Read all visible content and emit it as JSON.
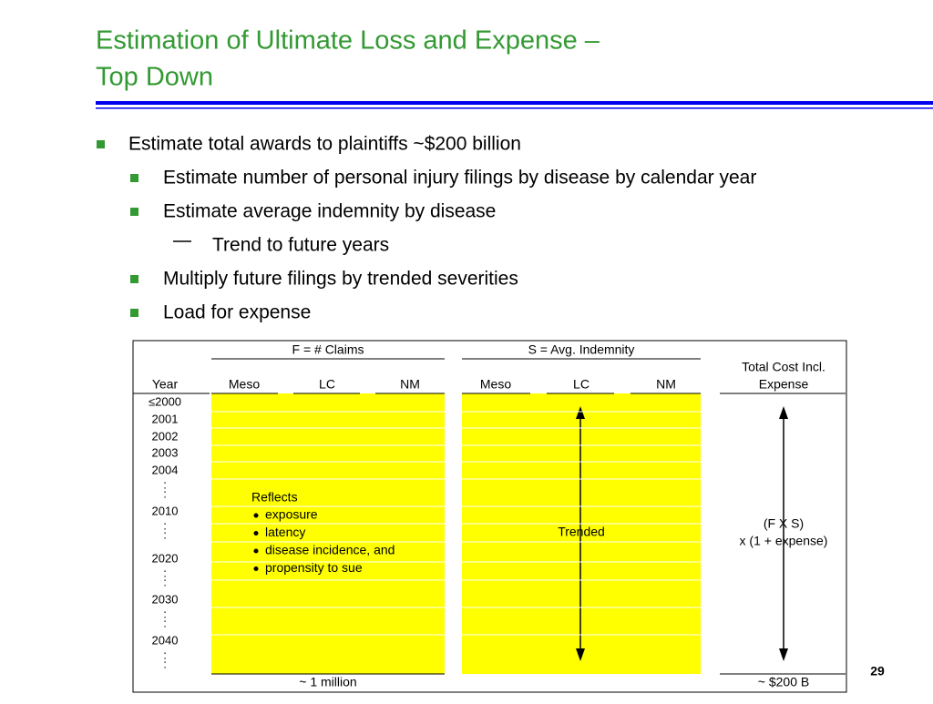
{
  "header": {
    "title_lines": [
      "Estimation of Ultimate Loss and Expense –",
      "Top Down"
    ]
  },
  "bullets": [
    {
      "text": "Estimate total awards to plaintiffs ~$200 billion",
      "level": 0
    },
    {
      "text": "Estimate number of personal injury filings by disease by calendar year",
      "level": 1
    },
    {
      "text": "Estimate average indemnity by disease",
      "level": 1
    },
    {
      "text": "Trend to future years",
      "level": 2
    },
    {
      "text": "Multiply future filings by trended severities",
      "level": 1
    },
    {
      "text": "Load for expense",
      "level": 1
    }
  ],
  "table": {
    "groups": [
      "F =  # Claims",
      "S =  Avg. Indemnity"
    ],
    "columns": [
      "Year",
      "Meso",
      "LC",
      "NM",
      "Meso",
      "LC",
      "NM"
    ],
    "total_header": [
      "Total Cost Incl.",
      "Expense"
    ],
    "years": [
      "≤2000",
      "2001",
      "2002",
      "2003",
      "2004",
      ":",
      ":",
      "2010",
      ":",
      ":",
      "2020",
      ":",
      ":",
      "2030",
      ":",
      ":",
      "2040",
      ":",
      ":"
    ],
    "reflects": {
      "heading": "Reflects",
      "items": [
        "exposure",
        "latency",
        "disease incidence, and",
        "propensity to sue"
      ]
    },
    "trended": "Trended",
    "total_formula": [
      "(F X S)",
      "x (1 +  expense)"
    ],
    "footer": [
      "~ 1 million",
      "~ $200 B"
    ]
  },
  "page_number": "29"
}
